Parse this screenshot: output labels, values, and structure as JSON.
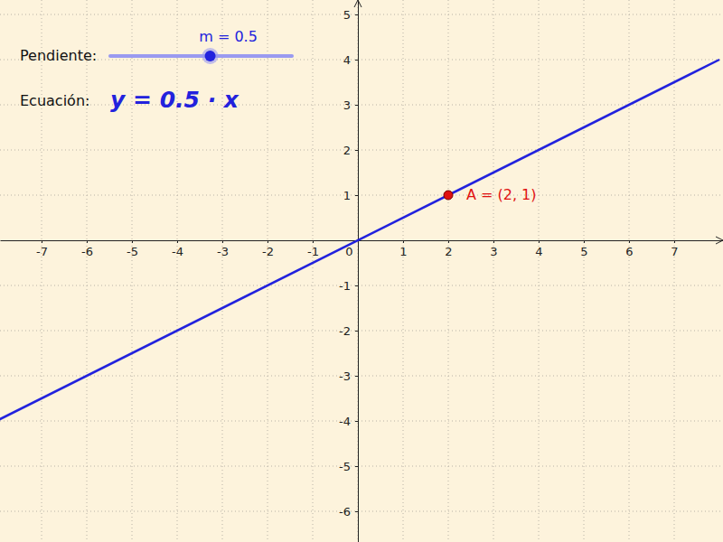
{
  "chart_data": {
    "type": "line",
    "xlim": [
      -7.92,
      8.08
    ],
    "ylim": [
      -6.68,
      5.32
    ],
    "xticks": [
      -7,
      -6,
      -5,
      -4,
      -3,
      -2,
      -1,
      0,
      1,
      2,
      3,
      4,
      5,
      6,
      7
    ],
    "yticks": [
      -6,
      -5,
      -4,
      -3,
      -2,
      -1,
      1,
      2,
      3,
      4,
      5
    ],
    "grid": true,
    "series": [
      {
        "x": [
          -8,
          8
        ],
        "values": [
          -4,
          4
        ],
        "color": "#2222dd",
        "line_style": "solid"
      },
      {
        "type": "scatter",
        "x": [
          2
        ],
        "values": [
          1
        ],
        "color": "#e01010",
        "marker": "circle"
      }
    ],
    "annotations": [
      {
        "text": "A = (2, 1)",
        "x": 2,
        "y": 1,
        "color": "#e01010"
      }
    ],
    "slider": {
      "label": "Pendiente:",
      "value_label": "m = 0.5",
      "value": 0.5,
      "range": [
        -5,
        5
      ],
      "color": "#2222dd"
    },
    "equation": {
      "label": "Ecuación:",
      "text": "y = 0.5 · x",
      "color": "#2222dd"
    }
  }
}
